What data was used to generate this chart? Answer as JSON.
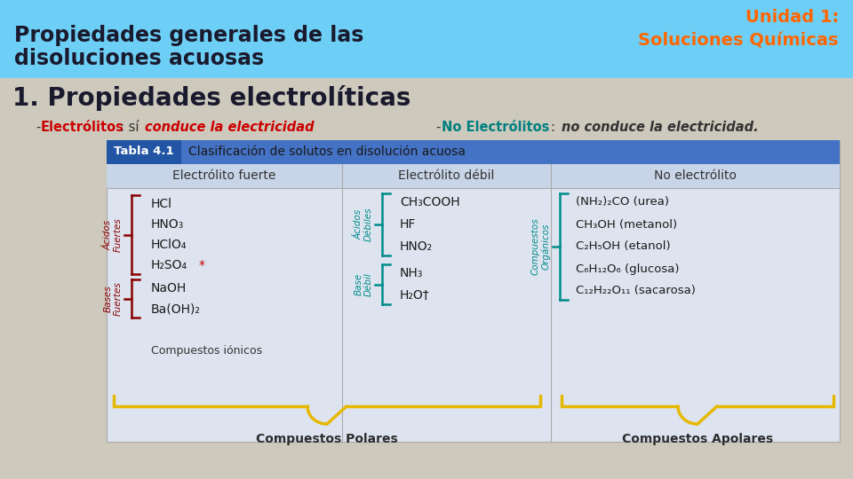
{
  "header_bg": "#6ecff6",
  "body_bg": "#cdc9bc",
  "table_bg": "#dde4ef",
  "table_header_blue": "#4472c4",
  "table_subheader_bg": "#c8d4e8",
  "header_text_color": "#1a1a2e",
  "right_title_color": "#ff6600",
  "section_title_color": "#1a1a2e",
  "electrolitos_color": "#cc0000",
  "no_electrolitos_label_color": "#008080",
  "italic_red": "#cc0000",
  "bracket_red": "#8B0000",
  "bracket_teal": "#008b8b",
  "bracket_yellow": "#e6b800",
  "label_red": "#8B0000",
  "label_teal": "#008b8b",
  "col1_acids": [
    "HCl",
    "HNO₃",
    "HClO₄",
    "H₂SO₄"
  ],
  "col1_bases": [
    "NaOH",
    "Ba(OH)₂"
  ],
  "col1_ionic": "Compuestos iónicos",
  "col2_acids": [
    "CH₃COOH",
    "HF",
    "HNO₂"
  ],
  "col2_bases": [
    "NH₃",
    "H₂O†"
  ],
  "col3_items": [
    "(NH₂)₂CO (urea)",
    "CH₃OH (metanol)",
    "C₂H₅OH (etanol)",
    "C₆H₁₂O₆ (glucosa)",
    "C₁₂H₂₂O₁₁ (sacarosa)"
  ],
  "compuestos_polares": "Compuestos Polares",
  "compuestos_apolares": "Compuestos Apolares"
}
